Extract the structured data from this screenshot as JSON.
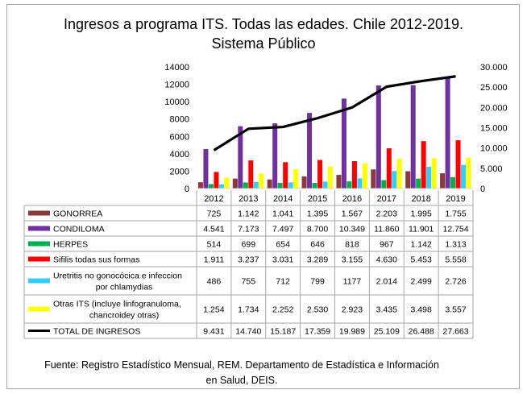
{
  "chart_data": {
    "type": "bar",
    "title": "Ingresos a programa ITS. Todas las edades. Chile 2012-2019.",
    "subtitle": "Sistema Público",
    "categories": [
      "2012",
      "2013",
      "2014",
      "2015",
      "2016",
      "2017",
      "2018",
      "2019"
    ],
    "ylim": [
      0,
      14000
    ],
    "y_ticks": [
      "0",
      "2000",
      "4000",
      "6000",
      "8000",
      "10000",
      "12000",
      "14000"
    ],
    "y2lim": [
      0,
      30000
    ],
    "y2_ticks": [
      "0",
      "5.000",
      "10.000",
      "15.000",
      "20.000",
      "25.000",
      "30.000"
    ],
    "grid": false,
    "series": [
      {
        "name": "GONORREA",
        "type": "bar",
        "axis": "left",
        "color": "#8b3a3a",
        "values": [
          725,
          1142,
          1041,
          1395,
          1567,
          2203,
          1995,
          1755
        ],
        "labels": [
          "725",
          "1.142",
          "1.041",
          "1.395",
          "1.567",
          "2.203",
          "1.995",
          "1.755"
        ]
      },
      {
        "name": "CONDILOMA",
        "type": "bar",
        "axis": "left",
        "color": "#7030a0",
        "values": [
          4541,
          7173,
          7497,
          8700,
          10349,
          11860,
          11901,
          12754
        ],
        "labels": [
          "4.541",
          "7.173",
          "7.497",
          "8.700",
          "10.349",
          "11.860",
          "11.901",
          "12.754"
        ]
      },
      {
        "name": "HERPES",
        "type": "bar",
        "axis": "left",
        "color": "#00b050",
        "values": [
          514,
          699,
          654,
          646,
          818,
          967,
          1142,
          1313
        ],
        "labels": [
          "514",
          "699",
          "654",
          "646",
          "818",
          "967",
          "1.142",
          "1.313"
        ]
      },
      {
        "name": "Sifilis todas sus formas",
        "type": "bar",
        "axis": "left",
        "color": "#ff0000",
        "values": [
          1911,
          3237,
          3031,
          3289,
          3155,
          4630,
          5453,
          5558
        ],
        "labels": [
          "1.911",
          "3.237",
          "3.031",
          "3.289",
          "3.155",
          "4.630",
          "5.453",
          "5.558"
        ]
      },
      {
        "name": "Uretritis no gonocócica e infeccion por chlamydias",
        "type": "bar",
        "axis": "left",
        "color": "#33ccff",
        "values": [
          486,
          755,
          712,
          799,
          1177,
          2014,
          2499,
          2726
        ],
        "labels": [
          "486",
          "755",
          "712",
          "799",
          "1177",
          "2.014",
          "2.499",
          "2.726"
        ]
      },
      {
        "name": "Otras ITS (incluye linfogranuloma, chancroidey otras)",
        "type": "bar",
        "axis": "left",
        "color": "#ffff00",
        "values": [
          1254,
          1734,
          2252,
          2530,
          2923,
          3435,
          3498,
          3557
        ],
        "labels": [
          "1.254",
          "1.734",
          "2.252",
          "2.530",
          "2.923",
          "3.435",
          "3.498",
          "3.557"
        ]
      },
      {
        "name": "TOTAL DE INGRESOS",
        "type": "line",
        "axis": "right",
        "color": "#000000",
        "values": [
          9431,
          14740,
          15187,
          17359,
          19989,
          25109,
          26488,
          27663
        ],
        "labels": [
          "9.431",
          "14.740",
          "15.187",
          "17.359",
          "19.989",
          "25.109",
          "26.488",
          "27.663"
        ]
      }
    ]
  },
  "source": {
    "line1": "Fuente: Registro Estadístico Mensual, REM. Departamento de Estadística e Información",
    "line2": "en Salud, DEIS."
  }
}
